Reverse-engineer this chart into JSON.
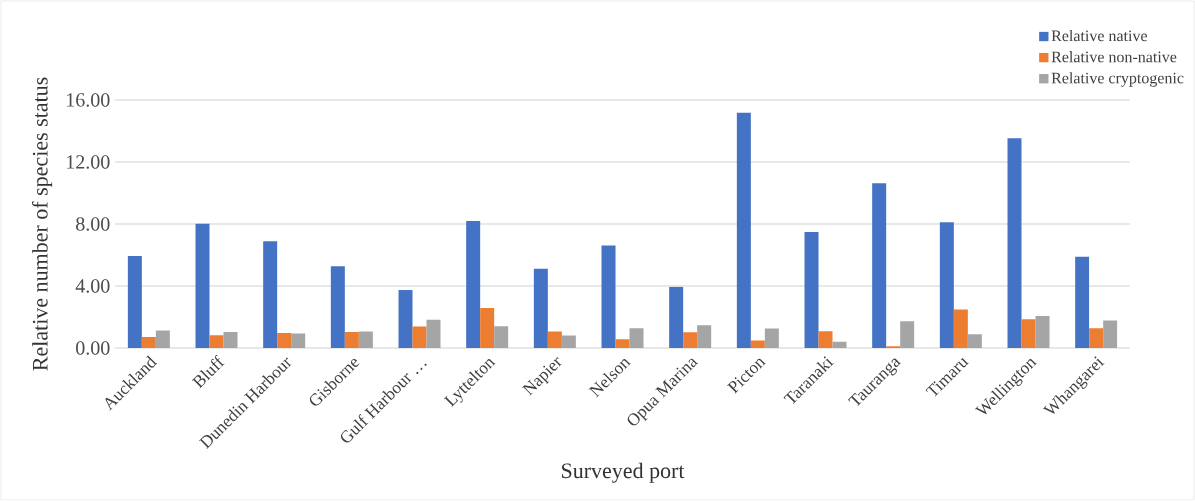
{
  "chart_data": {
    "type": "bar",
    "xlabel": "Surveyed port",
    "ylabel": "Relative number of species status",
    "categories": [
      "Auckland",
      "Bluff",
      "Dunedin Harbour",
      "Gisborne",
      "Gulf Harbour …",
      "Lyttelton",
      "Napier",
      "Nelson",
      "Opua Marina",
      "Picton",
      "Taranaki",
      "Tauranga",
      "Timaru",
      "Wellington",
      "Whangarei"
    ],
    "series": [
      {
        "name": "Relative native",
        "color": "#4472c4",
        "values": [
          5.93,
          8.01,
          6.88,
          5.28,
          3.74,
          8.2,
          5.11,
          6.62,
          3.94,
          15.19,
          7.49,
          10.63,
          8.12,
          13.53,
          5.89
        ]
      },
      {
        "name": "Relative non-native",
        "color": "#ed7d31",
        "values": [
          0.71,
          0.82,
          0.97,
          1.04,
          1.39,
          2.58,
          1.06,
          0.56,
          1.02,
          0.48,
          1.08,
          0.11,
          2.49,
          1.86,
          1.28
        ]
      },
      {
        "name": "Relative cryptogenic",
        "color": "#a5a5a5",
        "values": [
          1.13,
          1.04,
          0.93,
          1.06,
          1.82,
          1.41,
          0.8,
          1.28,
          1.47,
          1.26,
          0.41,
          1.73,
          0.89,
          2.06,
          1.77
        ]
      }
    ],
    "ylim": [
      0,
      16
    ],
    "yticks": [
      {
        "value": 0,
        "label": "0.00"
      },
      {
        "value": 4,
        "label": "4.00"
      },
      {
        "value": 8,
        "label": "8.00"
      },
      {
        "value": 12,
        "label": "12.00"
      },
      {
        "value": 16,
        "label": "16.00"
      }
    ],
    "grid": "y",
    "legend": "top right"
  }
}
